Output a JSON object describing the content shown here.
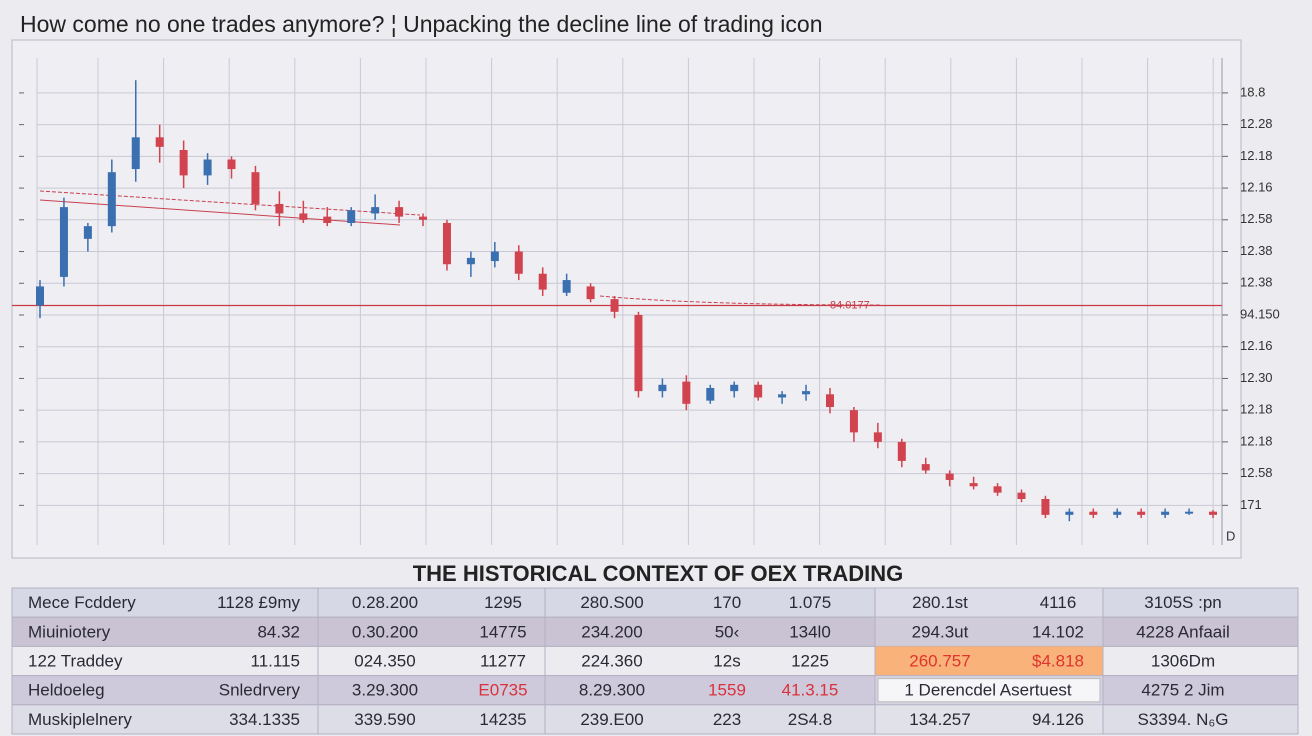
{
  "title": "How come no one trades anymore? ¦ Unpacking the decline line of trading icon",
  "chart_data": {
    "type": "candlestick",
    "open": [
      7.3,
      8.2,
      9.4,
      9.8,
      11.6,
      12.6,
      12.2,
      11.4,
      11.9,
      11.5,
      10.5,
      10.2,
      10.1,
      9.9,
      10.2,
      10.4,
      10.1,
      9.9,
      8.6,
      8.7,
      9.0,
      8.3,
      7.7,
      7.9,
      7.5,
      7.0,
      4.6,
      4.9,
      4.3,
      4.6,
      4.8,
      4.4,
      4.5,
      4.5,
      4.0,
      3.3,
      3.0,
      2.3,
      2.0,
      1.7,
      1.6,
      1.4,
      1.2,
      0.7,
      0.8,
      0.7,
      0.8,
      0.7,
      0.8,
      0.8
    ],
    "high": [
      8.1,
      10.7,
      9.9,
      11.9,
      14.4,
      13.0,
      12.5,
      12.1,
      12.0,
      11.7,
      10.9,
      10.6,
      10.4,
      10.4,
      10.8,
      10.6,
      10.2,
      10.0,
      9.0,
      9.3,
      9.2,
      8.5,
      8.3,
      8.0,
      7.6,
      7.1,
      5.0,
      5.1,
      4.8,
      4.9,
      4.9,
      4.6,
      4.8,
      4.7,
      4.1,
      3.6,
      3.1,
      2.5,
      2.1,
      1.9,
      1.7,
      1.5,
      1.3,
      0.9,
      0.9,
      0.9,
      0.9,
      0.9,
      0.9,
      0.85
    ],
    "low": [
      6.9,
      7.9,
      9.0,
      9.6,
      11.2,
      11.8,
      11.0,
      11.1,
      11.3,
      10.3,
      9.8,
      9.9,
      9.8,
      9.8,
      10.0,
      9.9,
      9.8,
      8.4,
      8.2,
      8.5,
      8.1,
      7.6,
      7.6,
      7.4,
      6.9,
      4.4,
      4.4,
      4.0,
      4.2,
      4.4,
      4.3,
      4.2,
      4.3,
      3.9,
      3.0,
      2.8,
      2.2,
      2.0,
      1.6,
      1.5,
      1.3,
      1.1,
      0.6,
      0.5,
      0.6,
      0.6,
      0.6,
      0.6,
      0.7,
      0.6
    ],
    "close": [
      7.9,
      10.4,
      9.8,
      11.5,
      12.6,
      12.3,
      11.4,
      11.9,
      11.6,
      10.5,
      10.2,
      10.0,
      9.9,
      10.3,
      10.4,
      10.1,
      10.0,
      8.6,
      8.8,
      9.0,
      8.3,
      7.8,
      8.1,
      7.5,
      7.1,
      4.6,
      4.8,
      4.2,
      4.7,
      4.8,
      4.4,
      4.5,
      4.6,
      4.1,
      3.3,
      3.0,
      2.4,
      2.1,
      1.8,
      1.6,
      1.4,
      1.2,
      0.7,
      0.8,
      0.7,
      0.8,
      0.7,
      0.8,
      0.8,
      0.7
    ],
    "up_color": "#3a6fb0",
    "down_color": "#d0434f",
    "ylim": [
      -0.25,
      15.1
    ],
    "yticks": [
      14,
      13,
      12,
      11,
      10,
      9,
      8,
      7,
      6,
      5,
      4,
      3,
      2,
      1
    ],
    "ytick_labels": [
      "18.8",
      "12.28",
      "12.18",
      "12.16",
      "12.58",
      "12.38",
      "12.38",
      "94.150",
      "12.16",
      "12.30",
      "12.18",
      "12.18",
      "12.58",
      "171"
    ],
    "axis_end_label": "D",
    "reference_line": 7.3,
    "reference_color": "#c83a44",
    "reference_label": "84.0177",
    "grid": true
  },
  "section_title": "THE HISTORICAL CONTEXT OF OEX TRADING",
  "table": {
    "rows": [
      [
        "Mece Fcddery",
        "1128 £9my",
        "0.28.200",
        "1295",
        "280.S00",
        "170",
        "1.075",
        "280.1st",
        "4116",
        "3105S :pn"
      ],
      [
        "Miuiniotery",
        "84.32",
        "0.30.200",
        "14775",
        "234.200",
        "50‹",
        "134l0",
        "294.3ut",
        "14.102",
        "4228 Anfaail"
      ],
      [
        "122  Traddey",
        "11.115",
        "024.350",
        "11277",
        "224.360",
        "12s",
        "1225",
        "260.757",
        "$4.818",
        "1306Dm"
      ],
      [
        "Heldoeleg",
        "Snledrvery",
        "3.29.300",
        "E0735",
        "8.29.300",
        "1559",
        "41.3.15",
        "1 Derencdel Asertuest",
        "4275 2 Jim"
      ],
      [
        "Muskiplelnery",
        "334.1335",
        "339.590",
        "14235",
        "239.E00",
        "223",
        "2S4.8",
        "134.257",
        "94.126",
        "S3394. N₆G"
      ]
    ]
  }
}
